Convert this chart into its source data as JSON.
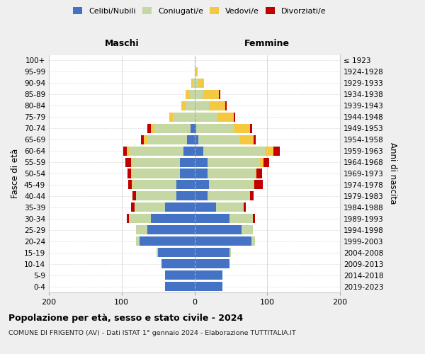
{
  "age_groups": [
    "0-4",
    "5-9",
    "10-14",
    "15-19",
    "20-24",
    "25-29",
    "30-34",
    "35-39",
    "40-44",
    "45-49",
    "50-54",
    "55-59",
    "60-64",
    "65-69",
    "70-74",
    "75-79",
    "80-84",
    "85-89",
    "90-94",
    "95-99",
    "100+"
  ],
  "birth_years": [
    "2019-2023",
    "2014-2018",
    "2009-2013",
    "2004-2008",
    "1999-2003",
    "1994-1998",
    "1989-1993",
    "1984-1988",
    "1979-1983",
    "1974-1978",
    "1969-1973",
    "1964-1968",
    "1959-1963",
    "1954-1958",
    "1949-1953",
    "1944-1948",
    "1939-1943",
    "1934-1938",
    "1929-1933",
    "1924-1928",
    "≤ 1923"
  ],
  "m_celibi": [
    40,
    40,
    45,
    50,
    75,
    65,
    60,
    40,
    25,
    25,
    20,
    20,
    15,
    10,
    5,
    0,
    0,
    0,
    0,
    0,
    0
  ],
  "m_coniugati": [
    0,
    0,
    0,
    2,
    5,
    15,
    30,
    42,
    55,
    60,
    65,
    65,
    75,
    55,
    50,
    30,
    12,
    6,
    2,
    0,
    0
  ],
  "m_vedovi": [
    0,
    0,
    0,
    0,
    0,
    0,
    0,
    0,
    0,
    1,
    2,
    2,
    3,
    5,
    5,
    5,
    6,
    6,
    2,
    0,
    0
  ],
  "m_divorziati": [
    0,
    0,
    0,
    0,
    0,
    0,
    3,
    5,
    5,
    5,
    5,
    8,
    5,
    3,
    5,
    0,
    0,
    0,
    0,
    0,
    0
  ],
  "f_nubili": [
    38,
    38,
    48,
    48,
    78,
    65,
    48,
    30,
    18,
    20,
    18,
    18,
    12,
    5,
    2,
    0,
    0,
    0,
    0,
    0,
    0
  ],
  "f_coniugate": [
    0,
    0,
    0,
    2,
    5,
    15,
    32,
    38,
    58,
    60,
    65,
    72,
    85,
    58,
    52,
    32,
    20,
    12,
    5,
    2,
    0
  ],
  "f_vedove": [
    0,
    0,
    0,
    0,
    0,
    0,
    0,
    0,
    0,
    2,
    2,
    5,
    12,
    18,
    22,
    22,
    22,
    22,
    8,
    2,
    0
  ],
  "f_divorziate": [
    0,
    0,
    0,
    0,
    0,
    0,
    3,
    3,
    5,
    12,
    8,
    8,
    8,
    3,
    3,
    2,
    2,
    2,
    0,
    0,
    0
  ],
  "colors": {
    "celibi_nubili": "#4472c4",
    "coniugati": "#c5d8a4",
    "vedovi": "#f5c842",
    "divorziati": "#c00000"
  },
  "xlim": [
    -200,
    200
  ],
  "xticks": [
    -200,
    -100,
    0,
    100,
    200
  ],
  "xticklabels": [
    "200",
    "100",
    "0",
    "100",
    "200"
  ],
  "title": "Popolazione per età, sesso e stato civile - 2024",
  "subtitle": "COMUNE DI FRIGENTO (AV) - Dati ISTAT 1° gennaio 2024 - Elaborazione TUTTITALIA.IT",
  "ylabel_left": "Fasce di età",
  "ylabel_right": "Anni di nascita",
  "header_left": "Maschi",
  "header_right": "Femmine",
  "bg_color": "#efefef",
  "plot_bg_color": "#ffffff"
}
